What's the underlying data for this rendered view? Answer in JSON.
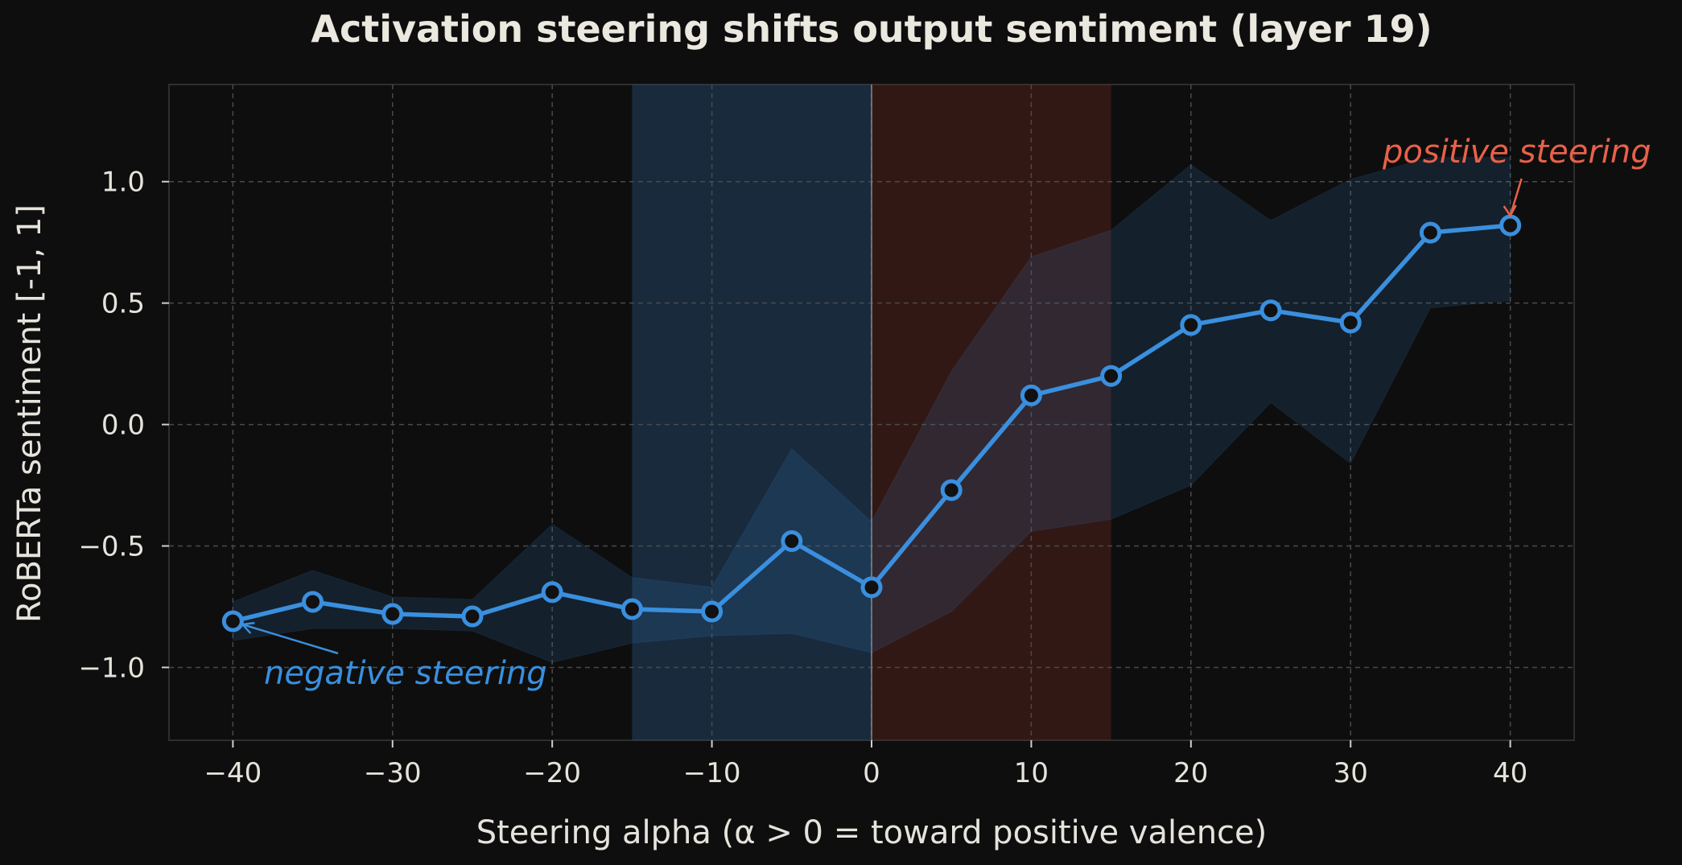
{
  "chart_data": {
    "type": "line",
    "title": "Activation steering shifts output sentiment  (layer 19)",
    "xlabel": "Steering alpha  (α > 0 = toward positive valence)",
    "ylabel": "RoBERTa sentiment  [-1, 1]",
    "xlim": [
      -44,
      44
    ],
    "ylim": [
      -1.3,
      1.4
    ],
    "xticks": [
      -40,
      -30,
      -20,
      -10,
      0,
      10,
      20,
      30,
      40
    ],
    "xtick_labels": [
      "−40",
      "−30",
      "−20",
      "−10",
      "0",
      "10",
      "20",
      "30",
      "40"
    ],
    "yticks": [
      -1.0,
      -0.5,
      0.0,
      0.5,
      1.0
    ],
    "ytick_labels": [
      "−1.0",
      "−0.5",
      "0.0",
      "0.5",
      "1.0"
    ],
    "grid": true,
    "series": [
      {
        "x": [
          -40,
          -35,
          -30,
          -25,
          -20,
          -15,
          -10,
          -5,
          0,
          5,
          10,
          15,
          20,
          25,
          30,
          35,
          40
        ],
        "y": [
          -0.81,
          -0.73,
          -0.78,
          -0.79,
          -0.69,
          -0.76,
          -0.77,
          -0.48,
          -0.67,
          -0.27,
          0.12,
          0.2,
          0.41,
          0.47,
          0.42,
          0.79,
          0.82
        ],
        "upper": [
          -0.73,
          -0.6,
          -0.71,
          -0.72,
          -0.41,
          -0.63,
          -0.67,
          -0.1,
          -0.4,
          0.22,
          0.69,
          0.8,
          1.07,
          0.84,
          1.01,
          1.1,
          1.1
        ],
        "lower": [
          -0.89,
          -0.84,
          -0.84,
          -0.85,
          -0.98,
          -0.9,
          -0.87,
          -0.86,
          -0.94,
          -0.77,
          -0.44,
          -0.39,
          -0.25,
          0.09,
          -0.16,
          0.48,
          0.51
        ],
        "color": "#3a8fde"
      }
    ],
    "shaded_regions": [
      {
        "x": [
          -15,
          0
        ],
        "color": "#2d5a8c"
      },
      {
        "x": [
          0,
          15
        ],
        "color": "#6e2a22"
      }
    ],
    "vline_x": 0,
    "annotations": [
      {
        "text": "positive steering",
        "x": 40,
        "y": 0.82,
        "color": "#e8614a"
      },
      {
        "text": "negative steering",
        "x": -40,
        "y": -0.81,
        "color": "#3a8fde"
      }
    ]
  }
}
